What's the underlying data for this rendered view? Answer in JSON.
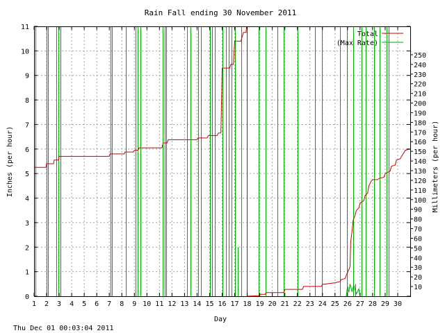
{
  "footer": {
    "timestamp": "Thu Dec 01 00:03:04 2011"
  },
  "chart_data": {
    "type": "line",
    "title": "Rain Fall ending 30 November 2011",
    "xlabel": "Day",
    "ylabel": "Inches (per hour)",
    "y2label": "Millimeters (per hour)",
    "xlim": [
      1,
      31
    ],
    "ylim": [
      0,
      11
    ],
    "y2lim": [
      0,
      279.4
    ],
    "x_ticks": [
      "1",
      "2",
      "3",
      "4",
      "5",
      "6",
      "7",
      "8",
      "9",
      "10",
      "11",
      "12",
      "13",
      "14",
      "15",
      "16",
      "17",
      "18",
      "19",
      "20",
      "21",
      "22",
      "23",
      "24",
      "25",
      "26",
      "27",
      "28",
      "29",
      "30"
    ],
    "y_ticks": [
      "0",
      "1",
      "2",
      "3",
      "4",
      "5",
      "6",
      "7",
      "8",
      "9",
      "10",
      "11"
    ],
    "y2_ticks": [
      "10",
      "20",
      "30",
      "40",
      "50",
      "60",
      "70",
      "80",
      "90",
      "100",
      "110",
      "120",
      "130",
      "140",
      "150",
      "160",
      "170",
      "180",
      "190",
      "200",
      "210",
      "220",
      "230",
      "240",
      "250"
    ],
    "grid": true,
    "legend_position": "top-right",
    "colors": {
      "total": "#cc0000",
      "max_rate": "#00aa00",
      "grid": "#a0a0a0",
      "axis": "#000000"
    },
    "series": [
      {
        "name": "Total",
        "x": [
          1.0,
          1.95,
          2.0,
          2.55,
          2.6,
          2.95,
          3.0,
          7.0,
          7.05,
          8.2,
          8.25,
          8.9,
          9.0,
          9.3,
          9.35,
          11.2,
          11.3,
          11.6,
          11.7,
          14.0,
          14.1,
          14.8,
          14.9,
          15.6,
          15.7,
          15.9,
          16.0,
          16.6,
          16.7,
          16.9,
          17.0,
          17.5,
          17.55,
          17.7,
          17.9,
          17.95,
          17.96,
          18.0,
          18.95,
          19.0,
          19.45,
          19.5,
          20.9,
          21.0,
          22.4,
          22.5,
          23.9,
          24.0,
          25.0,
          25.4,
          25.5,
          25.8,
          25.9,
          26.2,
          26.25,
          26.35,
          26.45,
          26.6,
          26.7,
          26.9,
          27.0,
          27.3,
          27.4,
          27.6,
          27.7,
          27.9,
          28.0,
          28.4,
          28.5,
          28.9,
          29.0,
          29.4,
          29.5,
          29.8,
          29.9,
          30.2,
          30.3,
          30.5,
          30.6,
          31.0
        ],
        "y": [
          5.25,
          5.25,
          5.4,
          5.4,
          5.55,
          5.55,
          5.7,
          5.7,
          5.8,
          5.8,
          5.88,
          5.88,
          5.95,
          5.95,
          6.05,
          6.05,
          6.25,
          6.25,
          6.38,
          6.38,
          6.45,
          6.45,
          6.55,
          6.55,
          6.65,
          6.65,
          9.3,
          9.3,
          9.45,
          9.45,
          10.4,
          10.4,
          10.5,
          10.75,
          10.75,
          11.0,
          0.0,
          0.0,
          0.02,
          0.08,
          0.08,
          0.15,
          0.15,
          0.28,
          0.28,
          0.4,
          0.4,
          0.48,
          0.55,
          0.6,
          0.68,
          0.72,
          0.85,
          1.2,
          2.2,
          2.6,
          3.1,
          3.3,
          3.5,
          3.6,
          3.8,
          3.9,
          4.1,
          4.2,
          4.5,
          4.7,
          4.75,
          4.75,
          4.8,
          4.85,
          5.0,
          5.1,
          5.3,
          5.35,
          5.55,
          5.6,
          5.7,
          5.85,
          5.95,
          6.0
        ]
      },
      {
        "name": "(Max Rate)",
        "spikes": [
          {
            "day": 1.1,
            "height": 11
          },
          {
            "day": 2.0,
            "height": 11
          },
          {
            "day": 2.1,
            "height": 11
          },
          {
            "day": 2.75,
            "height": 11
          },
          {
            "day": 2.95,
            "height": 11
          },
          {
            "day": 3.1,
            "height": 11
          },
          {
            "day": 7.1,
            "height": 11
          },
          {
            "day": 7.2,
            "height": 11
          },
          {
            "day": 8.3,
            "height": 11
          },
          {
            "day": 9.1,
            "height": 11
          },
          {
            "day": 9.25,
            "height": 11
          },
          {
            "day": 9.5,
            "height": 11
          },
          {
            "day": 11.25,
            "height": 11
          },
          {
            "day": 11.4,
            "height": 11
          },
          {
            "day": 11.55,
            "height": 11
          },
          {
            "day": 13.2,
            "height": 11
          },
          {
            "day": 13.45,
            "height": 11
          },
          {
            "day": 14.1,
            "height": 11
          },
          {
            "day": 14.3,
            "height": 11
          },
          {
            "day": 15.05,
            "height": 11
          },
          {
            "day": 15.2,
            "height": 11
          },
          {
            "day": 15.4,
            "height": 11
          },
          {
            "day": 16.05,
            "height": 11
          },
          {
            "day": 16.3,
            "height": 11
          },
          {
            "day": 16.5,
            "height": 11
          },
          {
            "day": 16.75,
            "height": 11
          },
          {
            "day": 17.05,
            "height": 11
          },
          {
            "day": 17.25,
            "height": 2.0
          },
          {
            "day": 17.55,
            "height": 11
          },
          {
            "day": 18.9,
            "height": 11
          },
          {
            "day": 19.45,
            "height": 11
          },
          {
            "day": 20.4,
            "height": 11
          },
          {
            "day": 20.9,
            "height": 11
          },
          {
            "day": 22.0,
            "height": 11
          },
          {
            "day": 23.4,
            "height": 11
          },
          {
            "day": 23.95,
            "height": 11
          },
          {
            "day": 25.4,
            "height": 11
          },
          {
            "day": 25.95,
            "height": 11
          },
          {
            "day": 26.45,
            "height": 11
          },
          {
            "day": 26.6,
            "height": 0.5
          },
          {
            "day": 27.1,
            "height": 11
          },
          {
            "day": 27.45,
            "height": 11
          },
          {
            "day": 28.1,
            "height": 11
          },
          {
            "day": 28.55,
            "height": 11
          },
          {
            "day": 29.1,
            "height": 11
          },
          {
            "day": 29.3,
            "height": 11
          }
        ]
      }
    ]
  }
}
